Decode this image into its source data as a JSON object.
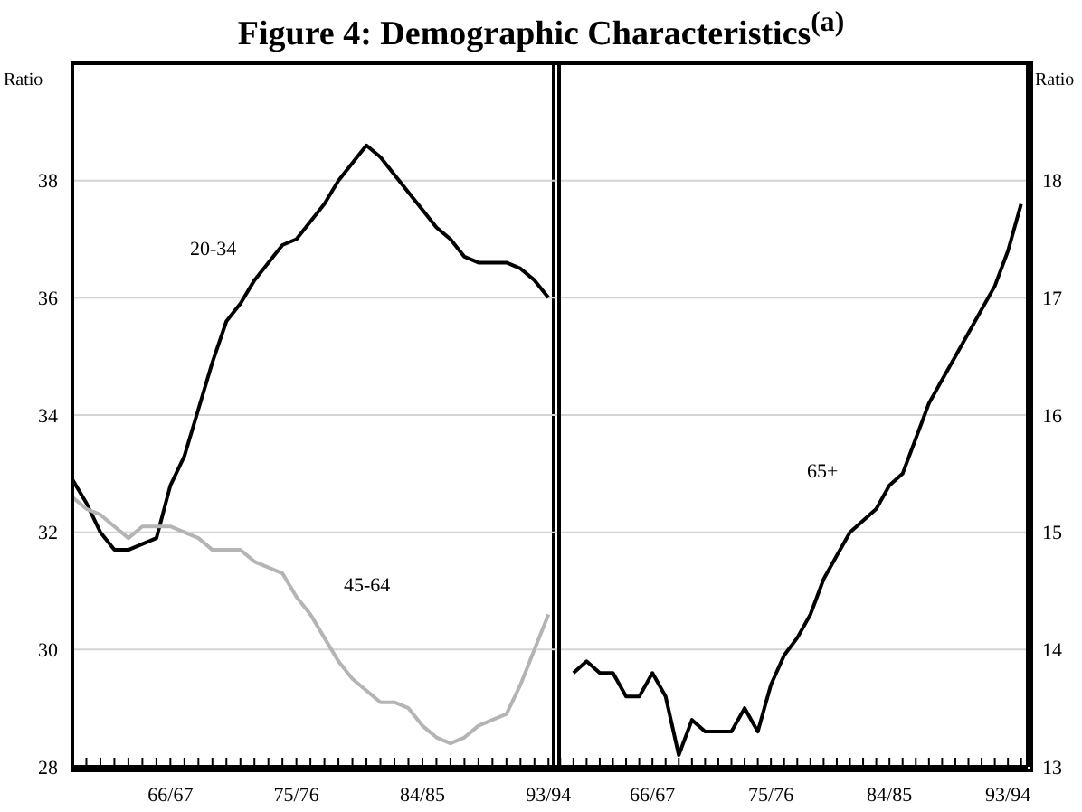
{
  "chart_data": [
    {
      "type": "line",
      "title": "Figure 4: Demographic Characteristics$^{(a)}$",
      "ylabel": "Ratio",
      "grid": "y",
      "marker": "none",
      "line_style": "solid",
      "ylim": [
        28,
        40
      ],
      "yticks": [
        28,
        30,
        32,
        34,
        36,
        38
      ],
      "categories": [
        null,
        null,
        null,
        null,
        null,
        null,
        null,
        "66/67",
        null,
        null,
        null,
        null,
        null,
        null,
        null,
        null,
        "75/76",
        null,
        null,
        null,
        null,
        null,
        null,
        null,
        null,
        "84/85",
        null,
        null,
        null,
        null,
        null,
        null,
        null,
        null,
        "93/94"
      ],
      "series": [
        {
          "name": "20-34",
          "color": "#000000",
          "values": [
            32.9,
            32.5,
            32.0,
            31.7,
            31.7,
            31.8,
            31.9,
            32.8,
            33.3,
            34.1,
            34.9,
            35.6,
            35.9,
            36.3,
            36.6,
            36.9,
            37.0,
            37.3,
            37.6,
            38.0,
            38.3,
            38.6,
            38.4,
            38.1,
            37.8,
            37.5,
            37.2,
            37.0,
            36.7,
            36.6,
            36.6,
            36.6,
            36.5,
            36.3,
            36.0
          ]
        },
        {
          "name": "45-64",
          "color": "#b4b4b4",
          "values": [
            32.6,
            32.4,
            32.3,
            32.1,
            31.9,
            32.1,
            32.1,
            32.1,
            32.0,
            31.9,
            31.7,
            31.7,
            31.7,
            31.5,
            31.4,
            31.3,
            30.9,
            30.6,
            30.2,
            29.8,
            29.5,
            29.3,
            29.1,
            29.1,
            29.0,
            28.7,
            28.5,
            28.4,
            28.5,
            28.7,
            28.8,
            28.9,
            29.4,
            30.0,
            30.6
          ]
        }
      ]
    },
    {
      "type": "line",
      "ylabel": "Ratio",
      "grid": "y",
      "marker": "none",
      "line_style": "solid",
      "ylim": [
        13,
        19
      ],
      "yticks": [
        13,
        14,
        15,
        16,
        17,
        18
      ],
      "categories": [
        null,
        null,
        null,
        null,
        null,
        null,
        null,
        "66/67",
        null,
        null,
        null,
        null,
        null,
        null,
        null,
        null,
        "75/76",
        null,
        null,
        null,
        null,
        null,
        null,
        null,
        null,
        "84/85",
        null,
        null,
        null,
        null,
        null,
        null,
        null,
        null,
        "93/94",
        null
      ],
      "series": [
        {
          "name": "65+",
          "color": "#000000",
          "values": [
            null,
            13.8,
            13.9,
            13.8,
            13.8,
            13.6,
            13.6,
            13.8,
            13.6,
            13.1,
            13.4,
            13.3,
            13.3,
            13.3,
            13.5,
            13.3,
            13.7,
            13.95,
            14.1,
            14.3,
            14.6,
            14.8,
            15.0,
            15.1,
            15.2,
            15.4,
            15.5,
            15.8,
            16.1,
            16.3,
            16.5,
            16.7,
            16.9,
            17.1,
            17.4,
            17.8
          ]
        }
      ]
    }
  ]
}
